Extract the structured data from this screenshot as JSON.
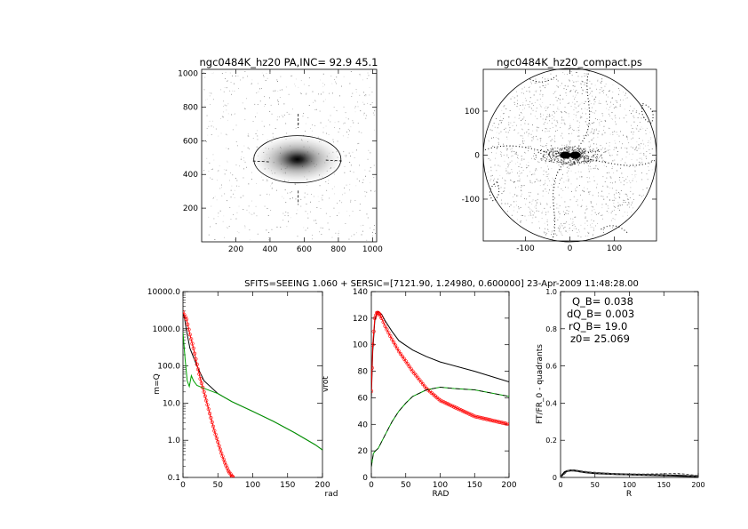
{
  "header": {
    "banner": "SFITS=SEEING 1.060 + SERSIC=[7121.90, 1.24980, 0.600000]  23-Apr-2009 11:48:28.00"
  },
  "chart_data": [
    {
      "id": "panel-image",
      "type": "scatter",
      "title": "ngc0484K_hz20 PA,INC= 92.9 45.1",
      "xlim": [
        0,
        1024
      ],
      "ylim": [
        0,
        1024
      ],
      "xticks": [
        200,
        400,
        600,
        800,
        1000
      ],
      "yticks": [
        200,
        400,
        600,
        800,
        1000
      ],
      "xlabel": "",
      "ylabel": "",
      "galaxy_center": [
        560,
        490
      ],
      "ellipse_semiaxes": [
        255,
        140
      ],
      "ticks_across": [
        [
          300,
          480
        ],
        [
          820,
          480
        ]
      ],
      "ticks_along": [
        [
          565,
          760
        ],
        [
          565,
          220
        ]
      ]
    },
    {
      "id": "panel-compact",
      "type": "scatter",
      "title": "ngc0484K_hz20_compact.ps",
      "xlim": [
        -195,
        195
      ],
      "ylim": [
        -195,
        195
      ],
      "xticks": [
        -100,
        0,
        100
      ],
      "yticks": [
        -100,
        0,
        100
      ],
      "xlabel": "",
      "ylabel": "",
      "circle_radius": 195
    },
    {
      "id": "panel-mq",
      "type": "line",
      "xlabel": "rad",
      "ylabel": "m=Q",
      "yscale": "log",
      "xlim": [
        0,
        200
      ],
      "ylim": [
        0.1,
        10000
      ],
      "xticks": [
        0,
        50,
        100,
        150,
        200
      ],
      "ytick_labels": [
        "0.1",
        "1.0",
        "10.0",
        "100.0",
        "1000.0",
        "10000.0"
      ],
      "series": [
        {
          "name": "total",
          "color": "#000000",
          "x": [
            0,
            2,
            5,
            10,
            20,
            30,
            50,
            70,
            100,
            130,
            160,
            190,
            200
          ],
          "y": [
            2500,
            2000,
            900,
            300,
            100,
            40,
            18,
            11,
            6,
            3.2,
            1.6,
            0.75,
            0.55
          ]
        },
        {
          "name": "sersic",
          "color": "#ff0000",
          "x": [
            0,
            5,
            10,
            15,
            20,
            25,
            30,
            35,
            40,
            45,
            50,
            55,
            60,
            65,
            70,
            72
          ],
          "y": [
            2800,
            1800,
            700,
            300,
            110,
            45,
            20,
            9,
            4,
            1.8,
            0.9,
            0.45,
            0.25,
            0.15,
            0.11,
            0.1
          ]
        },
        {
          "name": "disk",
          "color": "#00a000",
          "x": [
            0,
            3,
            6,
            9,
            12,
            15,
            20,
            30,
            50,
            70,
            100,
            130,
            160,
            190,
            200
          ],
          "y": [
            800,
            150,
            40,
            28,
            55,
            40,
            30,
            25,
            18,
            11,
            6,
            3.2,
            1.6,
            0.75,
            0.55
          ]
        }
      ]
    },
    {
      "id": "panel-vrot",
      "type": "line",
      "xlabel": "RAD",
      "ylabel": "vrot",
      "xlim": [
        0,
        200
      ],
      "ylim": [
        0,
        140
      ],
      "xticks": [
        0,
        50,
        100,
        150,
        200
      ],
      "yticks": [
        0,
        20,
        40,
        60,
        80,
        100,
        120,
        140
      ],
      "series": [
        {
          "name": "total",
          "color": "#000000",
          "x": [
            0,
            2,
            5,
            8,
            10,
            15,
            20,
            30,
            40,
            60,
            80,
            100,
            150,
            200
          ],
          "y": [
            60,
            95,
            118,
            124,
            125,
            123,
            118,
            110,
            103,
            96,
            91,
            87,
            80,
            72
          ]
        },
        {
          "name": "sersic",
          "color": "#ff0000",
          "x": [
            0,
            2,
            5,
            8,
            10,
            12,
            15,
            20,
            30,
            40,
            60,
            80,
            100,
            150,
            200
          ],
          "y": [
            65,
            100,
            120,
            124,
            124,
            123,
            120,
            114,
            104,
            95,
            80,
            67,
            58,
            46,
            40
          ]
        },
        {
          "name": "disk",
          "color": "#00a000",
          "x": [
            0,
            3,
            6,
            10,
            20,
            30,
            40,
            50,
            60,
            80,
            100,
            120,
            150,
            200
          ],
          "y": [
            8,
            18,
            20,
            22,
            32,
            42,
            50,
            56,
            61,
            66,
            68,
            67,
            66,
            61
          ]
        }
      ]
    },
    {
      "id": "panel-ftfr",
      "type": "line",
      "xlabel": "R",
      "ylabel": "FT/FR_0 - quadrants",
      "xlim": [
        0,
        200
      ],
      "ylim": [
        0,
        1
      ],
      "xticks": [
        0,
        50,
        100,
        150,
        200
      ],
      "yticks": [
        0,
        0.2,
        0.4,
        0.6,
        0.8,
        1.0
      ],
      "ytick_labels": [
        "0",
        "0.2",
        "0.4",
        "0.6",
        "0.8",
        "1.0"
      ],
      "annotations": [
        "Q_B=  0.038",
        "dQ_B=  0.003",
        "rQ_B=  19.0",
        "z0= 25.069"
      ],
      "series": [
        {
          "name": "main",
          "color": "#000000",
          "x": [
            0,
            3,
            6,
            10,
            15,
            19,
            25,
            35,
            50,
            80,
            120,
            160,
            200
          ],
          "y": [
            0,
            0.015,
            0.028,
            0.035,
            0.038,
            0.038,
            0.034,
            0.028,
            0.023,
            0.018,
            0.014,
            0.01,
            0.006
          ]
        },
        {
          "name": "quadrant-1",
          "color": "#555555",
          "dash": "3,2",
          "x": [
            0,
            10,
            19,
            40,
            80,
            120,
            150,
            170,
            200
          ],
          "y": [
            0,
            0.036,
            0.041,
            0.03,
            0.02,
            0.018,
            0.02,
            0.022,
            0.01
          ]
        },
        {
          "name": "quadrant-2",
          "color": "#555555",
          "dash": "3,2",
          "x": [
            0,
            10,
            19,
            40,
            80,
            120,
            150,
            170,
            200
          ],
          "y": [
            0,
            0.032,
            0.035,
            0.026,
            0.016,
            0.012,
            0.012,
            0.015,
            0.005
          ]
        }
      ]
    }
  ]
}
